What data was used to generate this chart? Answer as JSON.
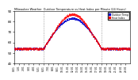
{
  "title": "Milwaukee Weather  Outdoor Temperature vs Heat Index per Minute (24 Hours)",
  "legend_labels": [
    "Outdoor Temp",
    "Heat Index"
  ],
  "legend_colors": [
    "#0000ff",
    "#ff0000"
  ],
  "background_color": "#ffffff",
  "plot_bg_color": "#ffffff",
  "dot_color_temp": "#0000cc",
  "dot_color_heat": "#ff0000",
  "vline_color": "#888888",
  "ylim": [
    40,
    90
  ],
  "yticks": [
    40,
    50,
    60,
    70,
    80,
    90
  ],
  "num_points": 1440,
  "vline_positions": [
    360,
    1080
  ],
  "x_tick_labels": [
    "0:01",
    "1:01",
    "2:01",
    "3:01",
    "4:01",
    "5:01",
    "6:01",
    "7:01",
    "8:01",
    "9:01",
    "10:01",
    "11:01",
    "12:01",
    "13:01",
    "14:01",
    "15:01",
    "16:01",
    "17:01",
    "18:01",
    "19:01",
    "20:01",
    "21:01",
    "22:01",
    "23:01"
  ]
}
